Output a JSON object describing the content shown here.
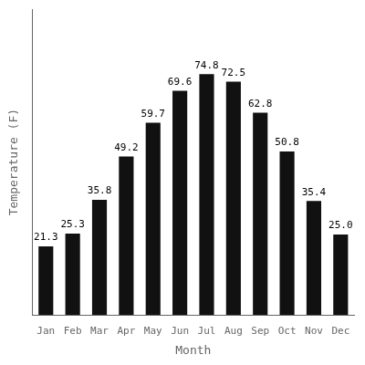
{
  "chart_data": {
    "type": "bar",
    "categories": [
      "Jan",
      "Feb",
      "Mar",
      "Apr",
      "May",
      "Jun",
      "Jul",
      "Aug",
      "Sep",
      "Oct",
      "Nov",
      "Dec"
    ],
    "values": [
      21.3,
      25.3,
      35.8,
      49.2,
      59.7,
      69.6,
      74.8,
      72.5,
      62.8,
      50.8,
      35.4,
      25.0
    ],
    "value_labels": [
      "21.3",
      "25.3",
      "35.8",
      "49.2",
      "59.7",
      "69.6",
      "74.8",
      "72.5",
      "62.8",
      "50.8",
      "35.4",
      "25.0"
    ],
    "color": "#111111",
    "x_label": "Month",
    "y_label": "Temperature (F)",
    "ylim": [
      0,
      95
    ],
    "grid": false,
    "data_labels": true,
    "tick_labels": "x"
  }
}
